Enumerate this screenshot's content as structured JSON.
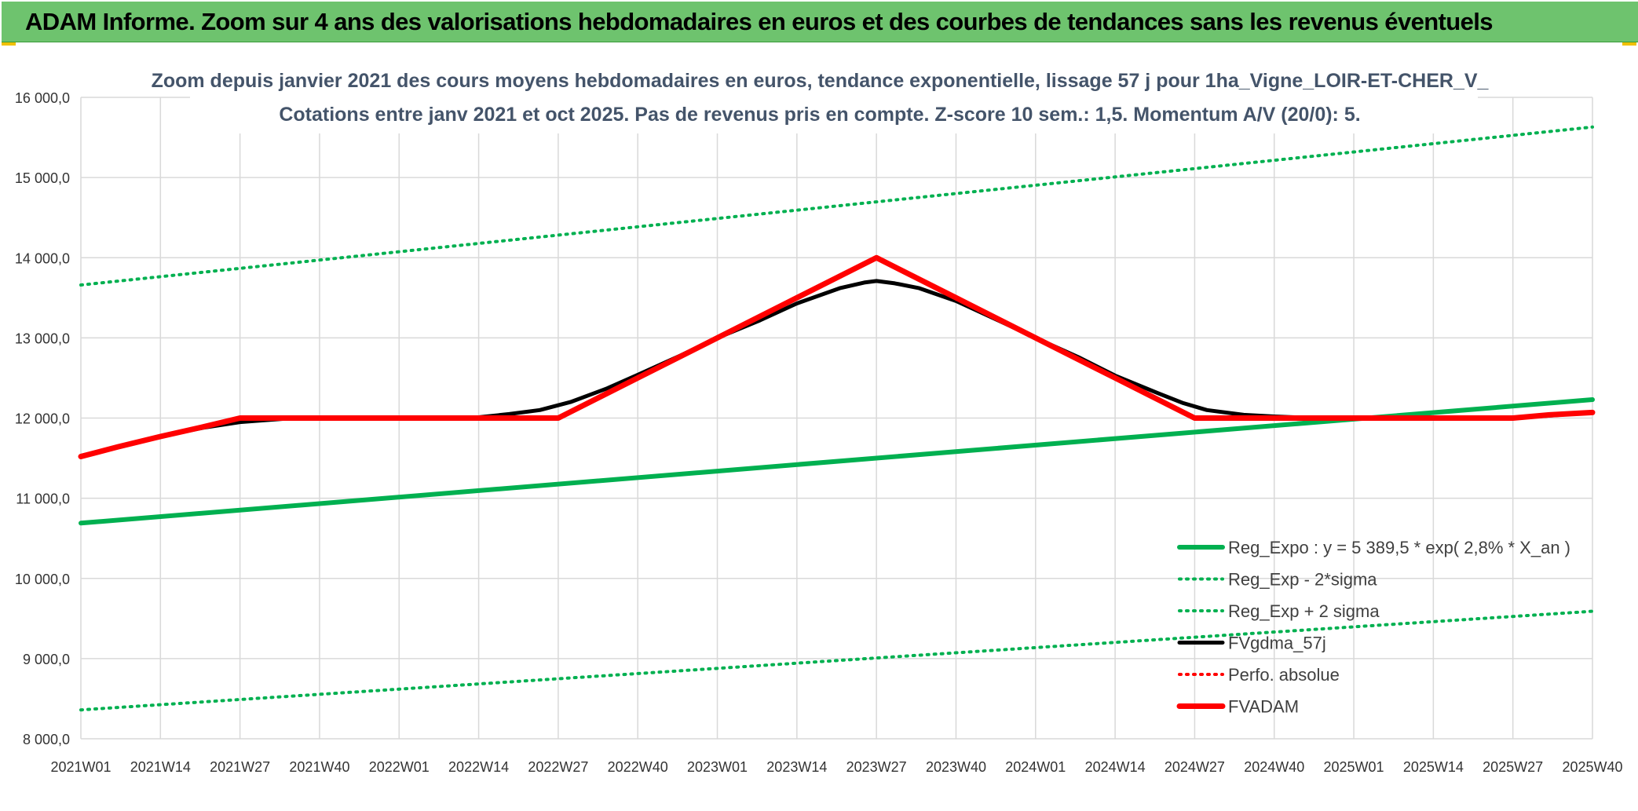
{
  "banner": {
    "title": "ADAM Informe. Zoom sur 4 ans des valorisations hebdomadaires en euros et des courbes de tendances sans les revenus éventuels"
  },
  "chart_data": {
    "type": "line",
    "title": "Zoom depuis janvier 2021 des cours moyens hebdomadaires en euros, tendance exponentielle, lissage 57 j pour 1ha_Vigne_LOIR-ET-CHER_V_",
    "subtitle": "Cotations entre janv 2021 et oct 2025. Pas de revenus pris en compte. Z-score 10 sem.: 1,5. Momentum A/V (20/0): 5.",
    "xlabel": "",
    "ylabel": "",
    "ylim": [
      8000,
      16000
    ],
    "yticks": [
      8000,
      9000,
      10000,
      11000,
      12000,
      13000,
      14000,
      15000,
      16000
    ],
    "ytick_labels": [
      "8 000,0",
      "9 000,0",
      "10 000,0",
      "11 000,0",
      "12 000,0",
      "13 000,0",
      "14 000,0",
      "15 000,0",
      "16 000,0"
    ],
    "xlim": [
      0,
      247
    ],
    "categories": [
      "2021W01",
      "2021W14",
      "2021W27",
      "2021W40",
      "2022W01",
      "2022W14",
      "2022W27",
      "2022W40",
      "2023W01",
      "2023W14",
      "2023W27",
      "2023W40",
      "2024W01",
      "2024W14",
      "2024W27",
      "2024W40",
      "2025W01",
      "2025W14",
      "2025W27",
      "2025W40"
    ],
    "category_index": [
      0,
      13,
      26,
      39,
      52,
      65,
      78,
      91,
      104,
      117,
      130,
      143,
      156,
      169,
      182,
      195,
      208,
      221,
      234,
      247
    ],
    "grid": true,
    "legend_position": "bottom-right",
    "series": [
      {
        "name": "Reg_Expo : y = 5 389,5 * exp( 2,8% *  X_an )",
        "color": "#00b050",
        "style": "solid",
        "width": 6,
        "x": [
          0,
          247
        ],
        "values": [
          10690,
          12230
        ]
      },
      {
        "name": "Reg_Exp - 2*sigma",
        "color": "#00b050",
        "style": "dotted",
        "width": 4,
        "x": [
          0,
          247
        ],
        "values": [
          8360,
          9590
        ]
      },
      {
        "name": "Reg_Exp + 2 sigma",
        "color": "#00b050",
        "style": "dotted",
        "width": 4,
        "x": [
          0,
          247
        ],
        "values": [
          13660,
          15630
        ]
      },
      {
        "name": "FVgdma_57j",
        "color": "#000000",
        "style": "solid",
        "width": 5,
        "x": [
          0,
          6,
          13,
          20,
          26,
          33,
          39,
          52,
          65,
          70,
          75,
          80,
          86,
          91,
          98,
          104,
          111,
          117,
          124,
          128,
          130,
          133,
          137,
          143,
          149,
          156,
          163,
          169,
          176,
          180,
          184,
          190,
          195,
          202,
          208,
          221,
          234,
          240,
          247
        ],
        "values": [
          11530,
          11640,
          11770,
          11880,
          11950,
          11990,
          12000,
          12000,
          12010,
          12050,
          12100,
          12200,
          12370,
          12540,
          12780,
          13000,
          13220,
          13430,
          13620,
          13690,
          13710,
          13680,
          13620,
          13460,
          13250,
          13000,
          12760,
          12530,
          12310,
          12190,
          12100,
          12040,
          12020,
          12000,
          12000,
          12000,
          12000,
          12030,
          12070
        ]
      },
      {
        "name": "Perfo. absolue",
        "color": "#ff0000",
        "style": "dotted",
        "width": 4,
        "x": [],
        "values": []
      },
      {
        "name": "FVADAM",
        "color": "#ff0000",
        "style": "solid",
        "width": 7,
        "x": [
          0,
          6,
          13,
          20,
          26,
          39,
          52,
          65,
          78,
          91,
          104,
          117,
          130,
          143,
          156,
          169,
          182,
          195,
          208,
          221,
          234,
          240,
          247
        ],
        "values": [
          11520,
          11640,
          11770,
          11890,
          12000,
          12000,
          12000,
          12000,
          12000,
          12500,
          13000,
          13500,
          14000,
          13500,
          13000,
          12500,
          12000,
          12000,
          12000,
          12000,
          12000,
          12040,
          12070
        ]
      }
    ]
  }
}
